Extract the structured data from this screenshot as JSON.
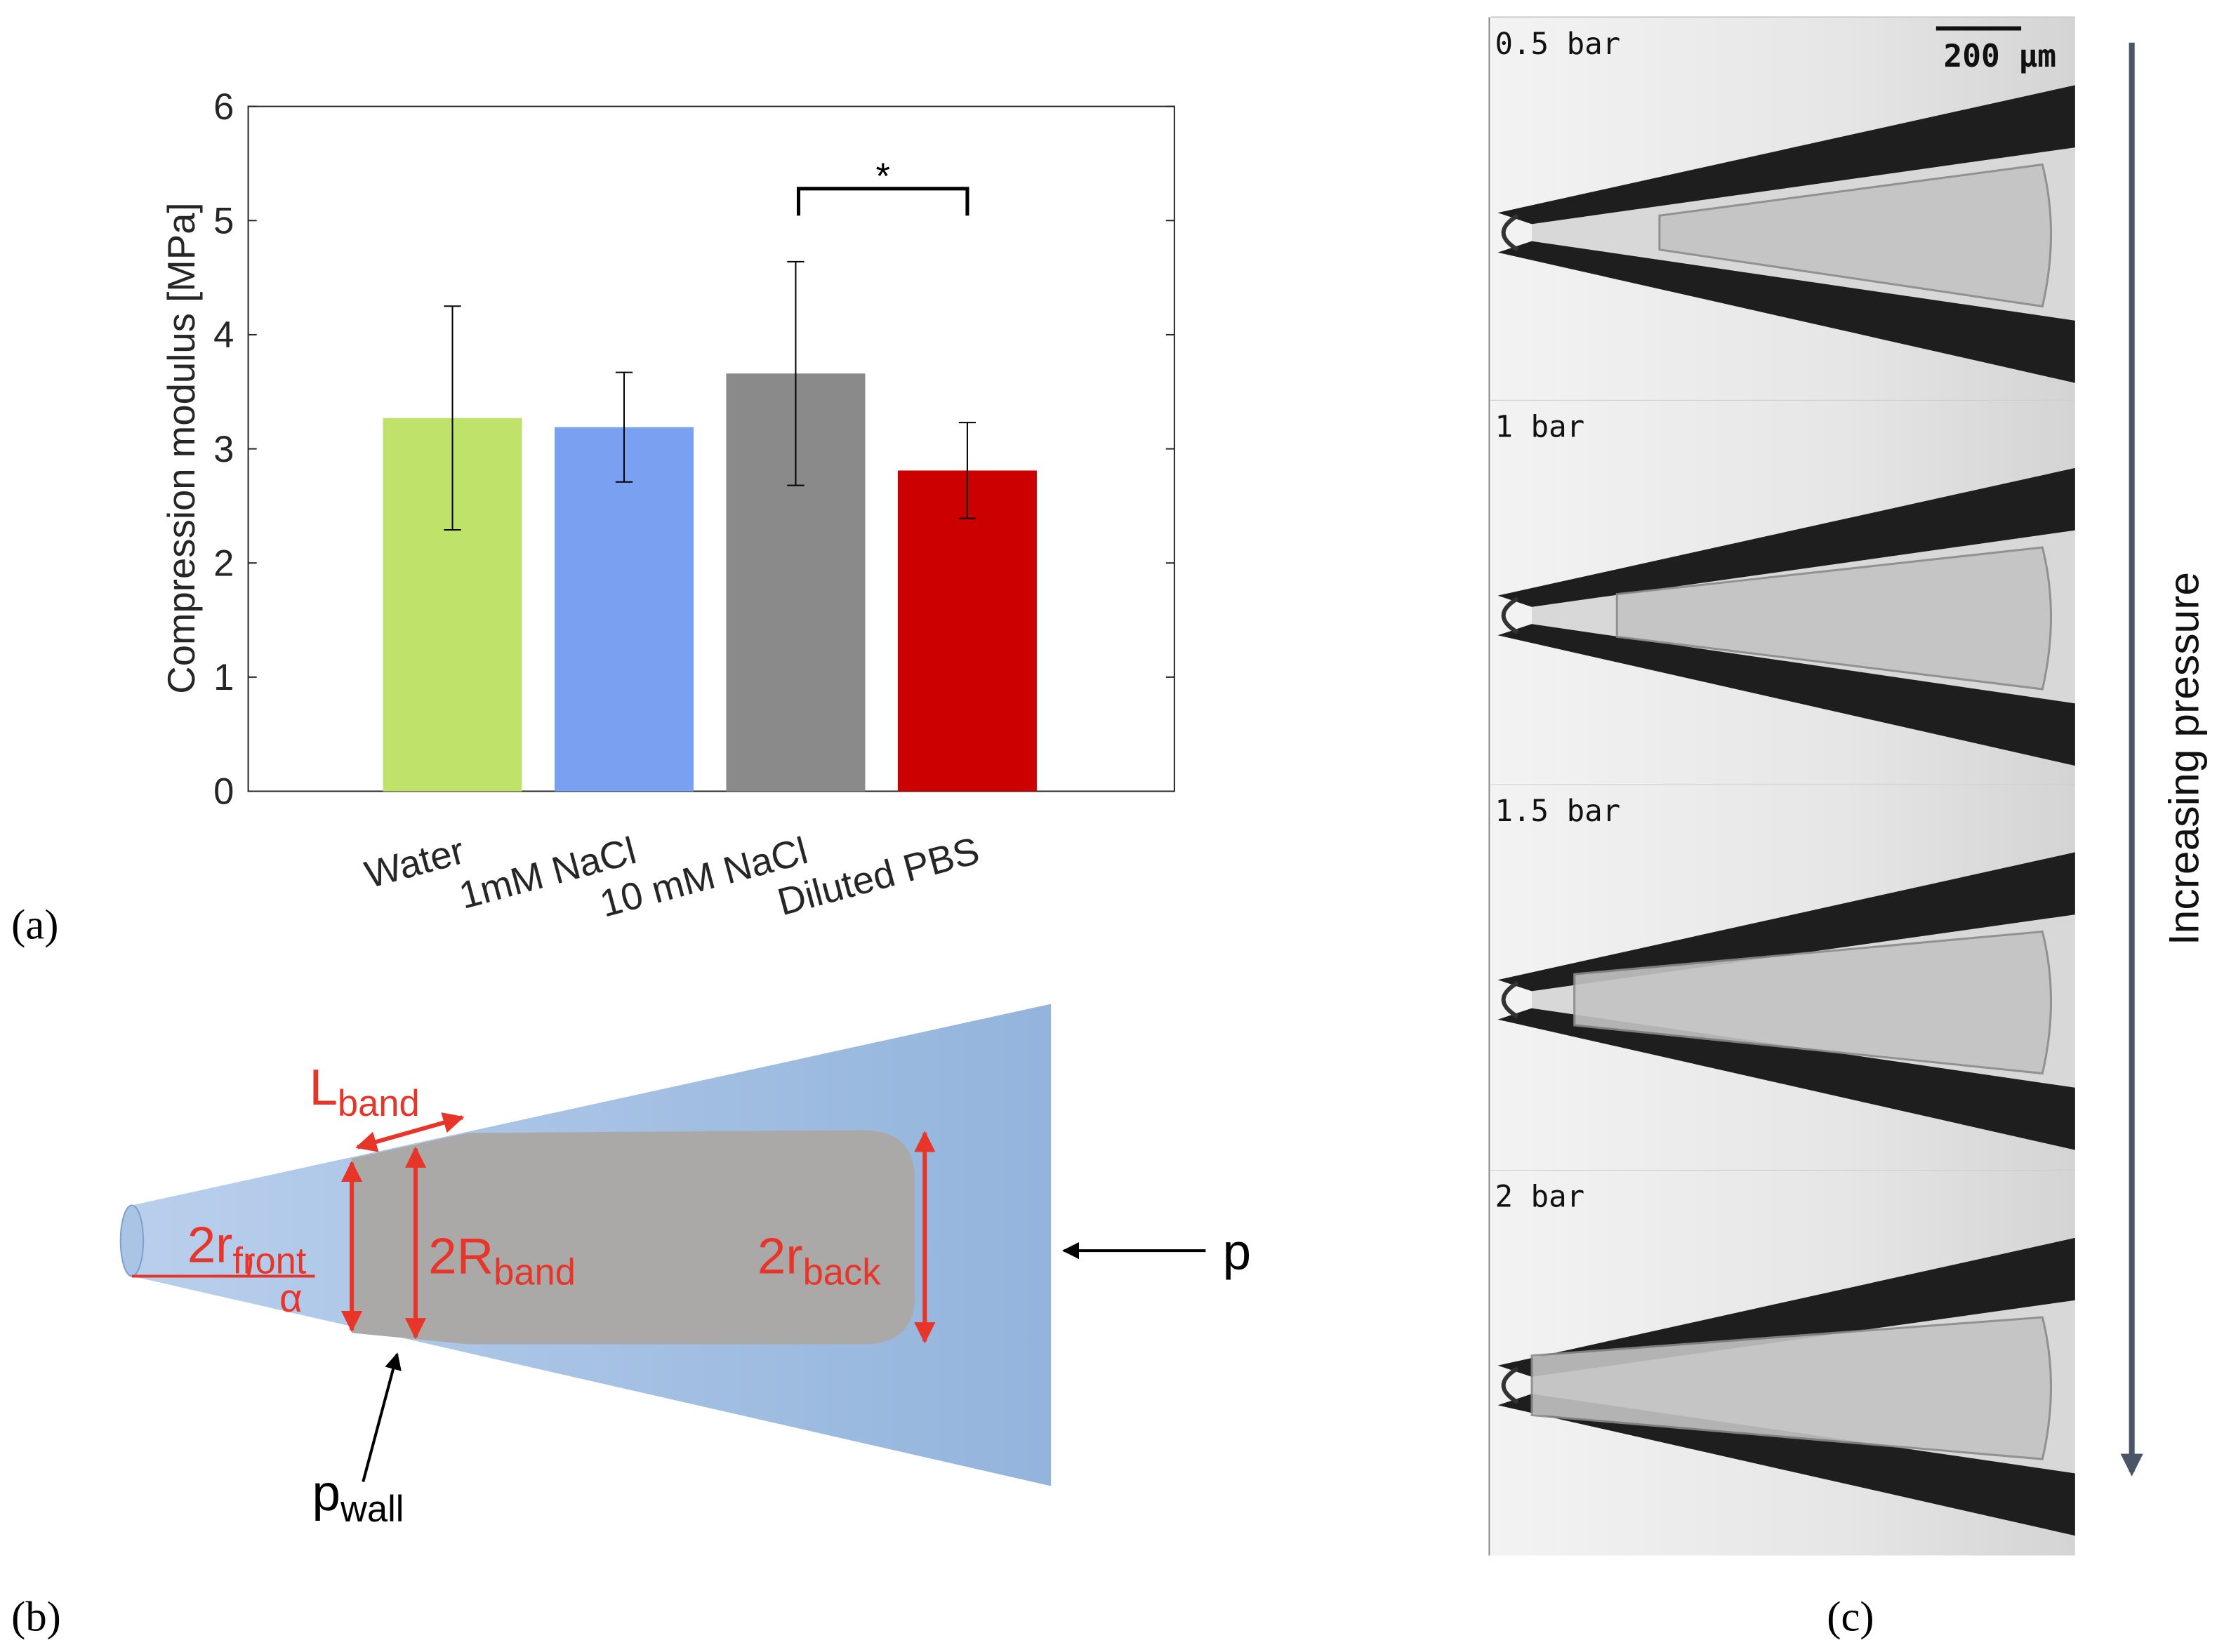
{
  "chart_data": {
    "type": "bar",
    "categories": [
      "Water",
      "1mM NaCl",
      "10 mM NaCl",
      "Diluted PBS"
    ],
    "values": [
      3.27,
      3.19,
      3.66,
      2.81
    ],
    "errors": [
      0.98,
      0.48,
      0.98,
      0.42
    ],
    "colors": [
      "#bfe36a",
      "#7aa0f2",
      "#8a8a8a",
      "#cc0000"
    ],
    "ylabel": "Compression modulus [MPa]",
    "ylim": [
      0,
      6
    ],
    "yticks": [
      0,
      1,
      2,
      3,
      4,
      5,
      6
    ],
    "annotations": [
      "*"
    ],
    "grid": false
  },
  "panel_labels": [
    "(a)",
    "(b)",
    "(c)"
  ],
  "diagram": {
    "l_band": {
      "main": "L",
      "sub": "band"
    },
    "r_front": {
      "main": "2r",
      "sub": "front"
    },
    "r_band": {
      "main": "2R",
      "sub": "band"
    },
    "r_back": {
      "main": "2r",
      "sub": "back"
    },
    "alpha": "α",
    "p": "p",
    "p_wall": {
      "main": "p",
      "sub": "wall"
    }
  },
  "photos": {
    "labels": [
      "0.5 bar",
      "1 bar",
      "1.5 bar",
      "2 bar"
    ],
    "scale_bar": "200 μm",
    "arrow_label": "Increasing pressure"
  }
}
